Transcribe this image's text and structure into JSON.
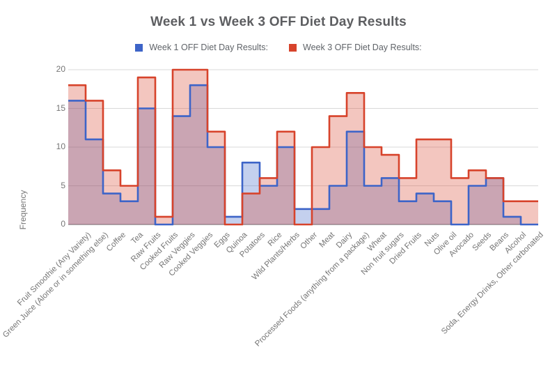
{
  "chart_data": {
    "type": "area",
    "variant": "stepped-area",
    "title": "Week 1 vs Week 3 OFF Diet Day Results",
    "ylabel": "Frequency",
    "xlabel": "",
    "ylim": [
      0,
      20
    ],
    "yticks": [
      0,
      5,
      10,
      15,
      20
    ],
    "grid": true,
    "legend_position": "top",
    "background_color": "#ffffff",
    "categories": [
      "Fruit Smoothie (Any Variety)",
      "Green Juice (Alone or in something else)",
      "Coffee",
      "Tea",
      "Raw Fruits",
      "Cooked Fruits",
      "Raw Veggies",
      "Cooked Veggies",
      "Eggs",
      "Quinoa",
      "Potatoes",
      "Rice",
      "Wild Plants/Herbs",
      "Other",
      "Meat",
      "Dairy",
      "Processed Foods (anything from a package)",
      "Wheat",
      "Non fruit sugars",
      "Dried Fruits",
      "Nuts",
      "Olive oil",
      "Avocado",
      "Seeds",
      "Beans",
      "Alcohol",
      "Soda, Energy Drinks, Other carbonated"
    ],
    "series": [
      {
        "name": "Week 1 OFF Diet Day Results:",
        "color": "#3D64C8",
        "fill_opacity": 0.3,
        "values": [
          16,
          11,
          4,
          3,
          15,
          0,
          14,
          18,
          10,
          1,
          8,
          5,
          10,
          2,
          2,
          5,
          12,
          5,
          6,
          3,
          4,
          3,
          0,
          5,
          6,
          1,
          0
        ]
      },
      {
        "name": "Week 3 OFF Diet Day Results:",
        "color": "#D7432B",
        "fill_opacity": 0.3,
        "values": [
          18,
          16,
          7,
          5,
          19,
          1,
          20,
          20,
          12,
          0,
          4,
          6,
          12,
          0,
          10,
          14,
          17,
          10,
          9,
          6,
          11,
          11,
          6,
          7,
          6,
          3,
          3
        ]
      }
    ]
  }
}
